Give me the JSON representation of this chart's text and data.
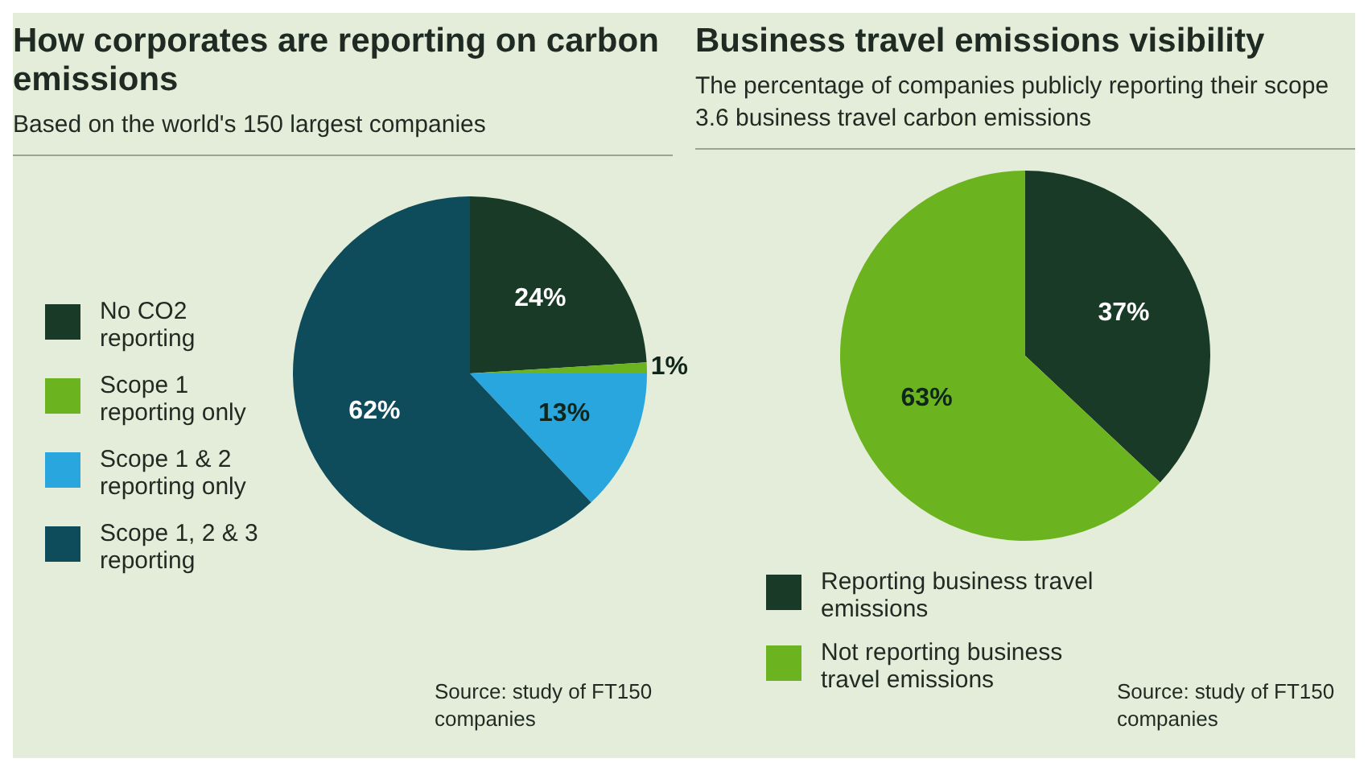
{
  "chart_data": [
    {
      "type": "pie",
      "title": "How corporates are reporting on carbon emissions",
      "subtitle": "Based on the world's 150 largest companies",
      "categories": [
        "No CO2 reporting",
        "Scope 1 reporting only",
        "Scope 1 & 2 reporting only",
        "Scope 1, 2 & 3 reporting"
      ],
      "values": [
        24,
        1,
        13,
        62
      ],
      "value_labels": [
        "24%",
        "1%",
        "13%",
        "62%"
      ],
      "colors": [
        "#183a26",
        "#6cb41f",
        "#29a6de",
        "#0e4b5b"
      ],
      "legend": "left",
      "annotations": [
        "Source: study of FT150 companies"
      ]
    },
    {
      "type": "pie",
      "title": "Business travel emissions visibility",
      "subtitle": "The percentage of companies publicly reporting their scope 3.6 business travel carbon emissions",
      "categories": [
        "Reporting business travel emissions",
        "Not reporting business travel emissions"
      ],
      "values": [
        37,
        63
      ],
      "value_labels": [
        "37%",
        "63%"
      ],
      "colors": [
        "#183a26",
        "#6cb41f"
      ],
      "legend": "bottom",
      "annotations": [
        "Source: study of FT150 companies"
      ]
    }
  ]
}
